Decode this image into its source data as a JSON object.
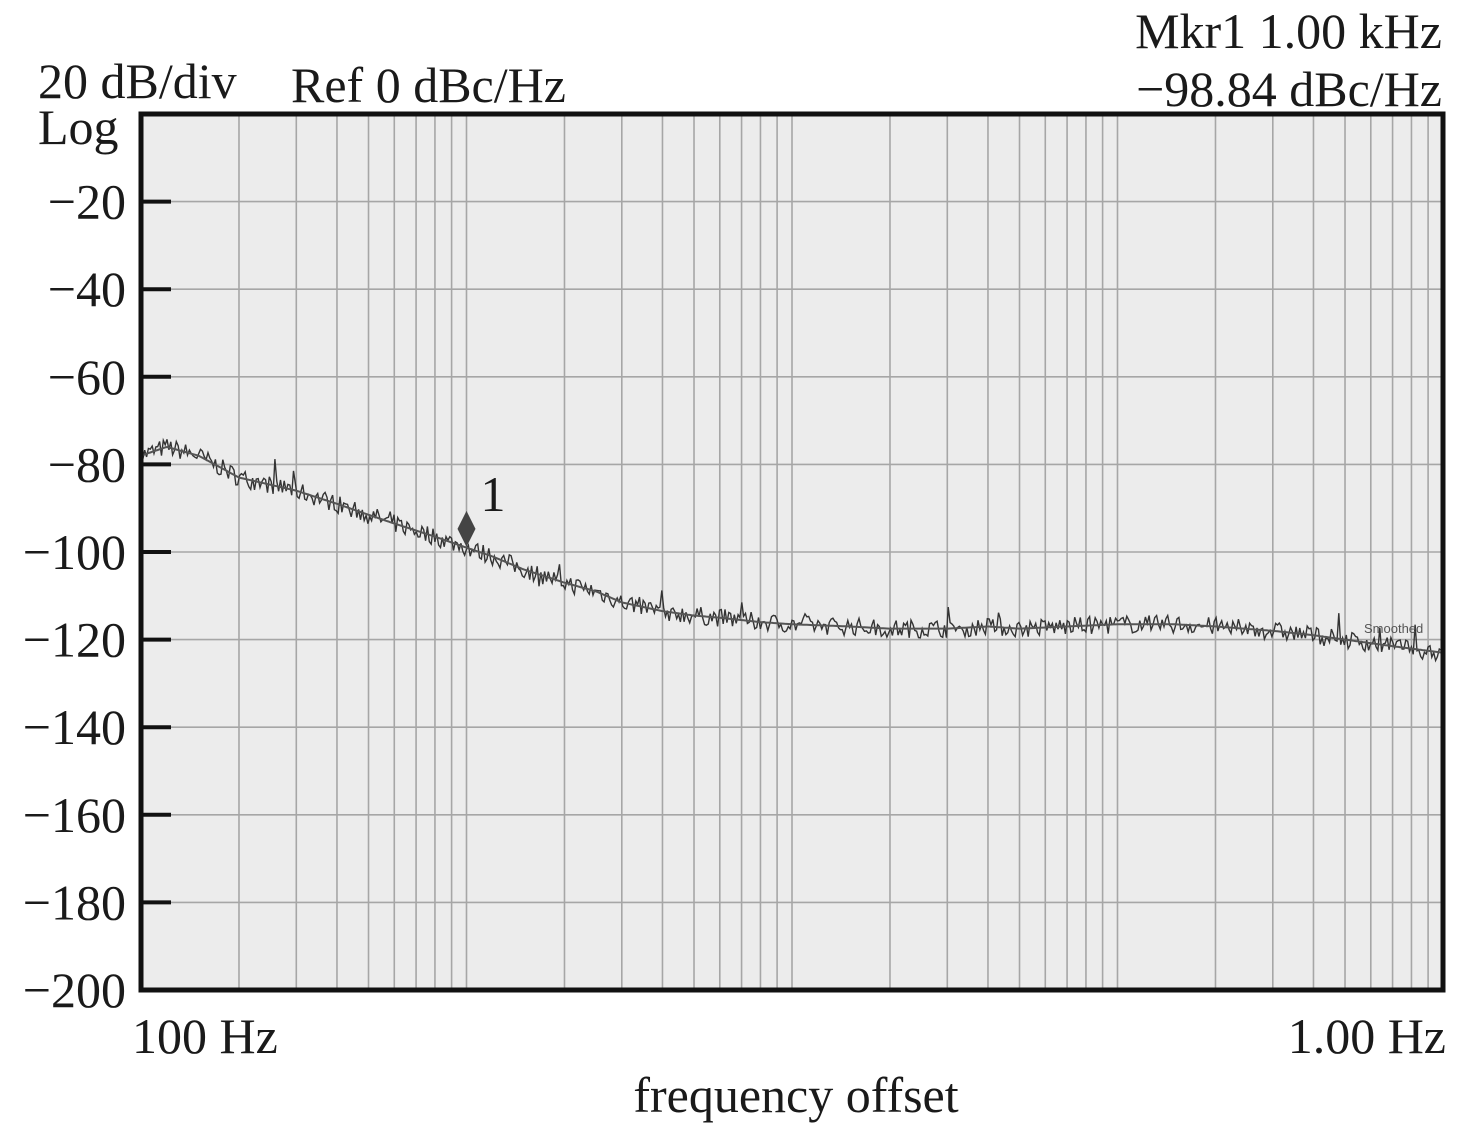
{
  "header": {
    "scale": "20 dB/div",
    "scale_type": "Log",
    "reference": "Ref 0 dBc/Hz",
    "marker_label": "Mkr1  1.00 kHz",
    "marker_value": "−98.84 dBc/Hz"
  },
  "chart_data": {
    "type": "line",
    "title": "",
    "xlabel": "frequency offset",
    "ylabel": "",
    "x_scale": "log",
    "x_tick_labels": [
      "100 Hz",
      "1.00 Hz"
    ],
    "ylim": [
      -200,
      0
    ],
    "y_ticks": [
      -20,
      -40,
      -60,
      -80,
      -100,
      -120,
      -140,
      -160,
      -180,
      -200
    ],
    "y_tick_labels": [
      "−20",
      "−40",
      "−60",
      "−80",
      "−100",
      "−120",
      "−140",
      "−160",
      "−180",
      "−200"
    ],
    "grid": true,
    "colors": {
      "background": "#ececec",
      "grid": "#a6a6a6",
      "trace": "#333333",
      "frame": "#111111",
      "marker": "#444444"
    },
    "marker": {
      "label": "1",
      "x": 1000,
      "y": -98.84
    },
    "trace_annotation": "Smoothed",
    "series": [
      {
        "x": [
          100,
          120,
          150,
          200,
          300,
          400,
          500,
          600,
          800,
          1000,
          1200,
          1500,
          2000,
          2500,
          3000,
          4000,
          5000,
          6000,
          8000,
          10000,
          15000,
          20000,
          30000,
          40000,
          50000,
          70000,
          100000,
          150000,
          200000,
          300000,
          400000,
          500000,
          700000,
          1000000
        ],
        "y": [
          -78,
          -76,
          -78,
          -83,
          -86,
          -89,
          -91.5,
          -93.5,
          -96.5,
          -99,
          -101,
          -104,
          -107,
          -109,
          -111.5,
          -113.5,
          -114.5,
          -115,
          -116,
          -116.5,
          -117,
          -117.5,
          -117.5,
          -117,
          -117.5,
          -117,
          -116.5,
          -116.5,
          -117,
          -118,
          -119,
          -120,
          -121.5,
          -123
        ]
      }
    ]
  }
}
